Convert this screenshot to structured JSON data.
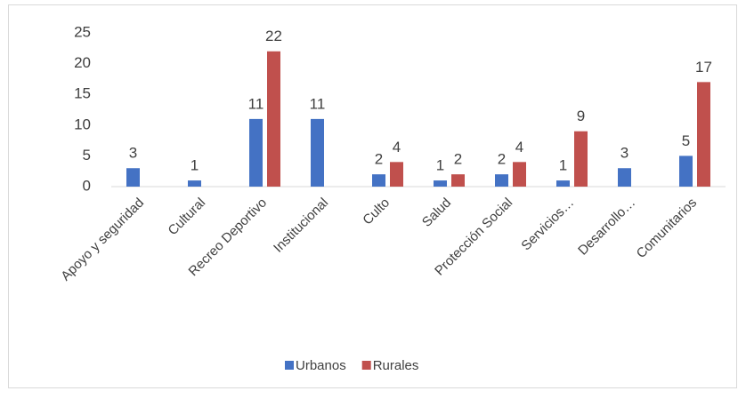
{
  "chart_data": {
    "type": "bar",
    "categories": [
      "Apoyo y seguridad",
      "Cultural",
      "Recreo Deportivo",
      "Institucional",
      "Culto",
      "Salud",
      "Protección Social",
      "Servicios…",
      "Desarrollo…",
      "Comunitarios"
    ],
    "series": [
      {
        "name": "Urbanos",
        "color": "#4472c4",
        "values": [
          3,
          1,
          11,
          11,
          2,
          1,
          2,
          1,
          3,
          5
        ]
      },
      {
        "name": "Rurales",
        "color": "#c0504d",
        "values": [
          null,
          null,
          22,
          null,
          4,
          2,
          4,
          9,
          null,
          17
        ]
      }
    ],
    "ylim": [
      0,
      25
    ],
    "yticks": [
      0,
      5,
      10,
      15,
      20,
      25
    ],
    "grid": false,
    "legend": "bottom",
    "data_labels": true
  }
}
